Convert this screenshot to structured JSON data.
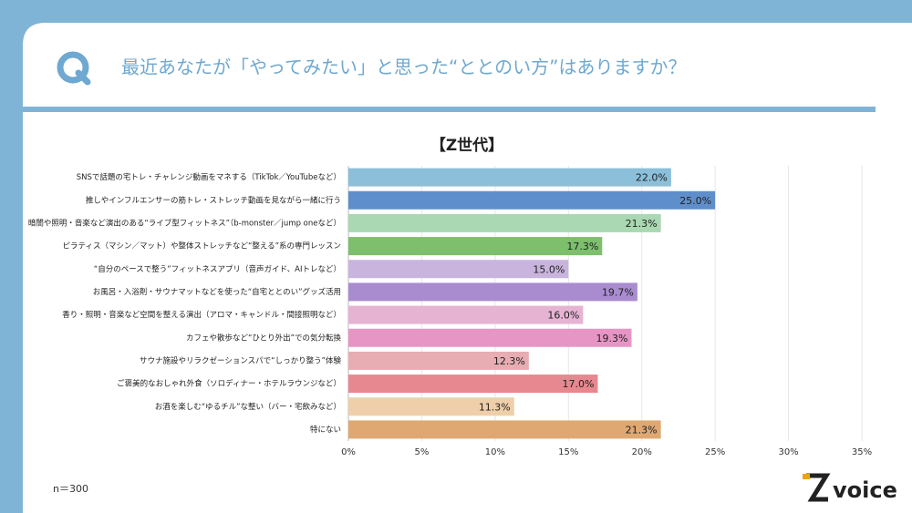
{
  "header": {
    "title": "最近あなたが「やってみたい」と思った“ととのい方”はありますか？"
  },
  "chart_data": {
    "type": "bar",
    "orientation": "horizontal",
    "title": "【Z世代】",
    "categories": [
      "SNSで話題の宅トレ・チャレンジ動画をマネする（TikTok／YouTubeなど）",
      "推しやインフルエンサーの筋トレ・ストレッチ動画を見ながら一緒に行う",
      "暗闇や照明・音楽など演出のある“ライブ型フィットネス”（b-monster／jump oneなど）",
      "ピラティス（マシン／マット）や整体ストレッチなど“整える”系の専門レッスン",
      "“自分のペースで整う”フィットネスアプリ（音声ガイド、AIトレなど）",
      "お風呂・入浴剤・サウナマットなどを使った“自宅ととのい”グッズ活用",
      "香り・照明・音楽など空間を整える演出（アロマ・キャンドル・間接照明など）",
      "カフェや散歩など“ひとり外出”での気分転換",
      "サウナ施設やリラクゼーションスパで“しっかり整う”体験",
      "ご褒美的なおしゃれ外食（ソロディナー・ホテルラウンジなど）",
      "お酒を楽しむ“ゆるチル”な整い（バー・宅飲みなど）",
      "特にない"
    ],
    "values": [
      22.0,
      25.0,
      21.3,
      17.3,
      15.0,
      19.7,
      16.0,
      19.3,
      12.3,
      17.0,
      11.3,
      21.3
    ],
    "value_labels": [
      "22.0%",
      "25.0%",
      "21.3%",
      "17.3%",
      "15.0%",
      "19.7%",
      "16.0%",
      "19.3%",
      "12.3%",
      "17.0%",
      "11.3%",
      "21.3%"
    ],
    "colors": [
      "#8cbfda",
      "#5f8fcb",
      "#a9d8b2",
      "#7dbf6c",
      "#c8b4dd",
      "#a98cd0",
      "#e6b3d3",
      "#e795c4",
      "#e7adb3",
      "#e7878f",
      "#efcfaa",
      "#dfa872"
    ],
    "xlim": [
      0,
      35
    ],
    "xticks": [
      {
        "value": 0,
        "label": "0%"
      },
      {
        "value": 5,
        "label": "5%"
      },
      {
        "value": 10,
        "label": "10%"
      },
      {
        "value": 15,
        "label": "15%"
      },
      {
        "value": 20,
        "label": "20%"
      },
      {
        "value": 25,
        "label": "25%"
      },
      {
        "value": 30,
        "label": "30%"
      },
      {
        "value": 35,
        "label": "35%"
      }
    ],
    "grid": true
  },
  "footnote": "n＝300",
  "logo": "voice"
}
